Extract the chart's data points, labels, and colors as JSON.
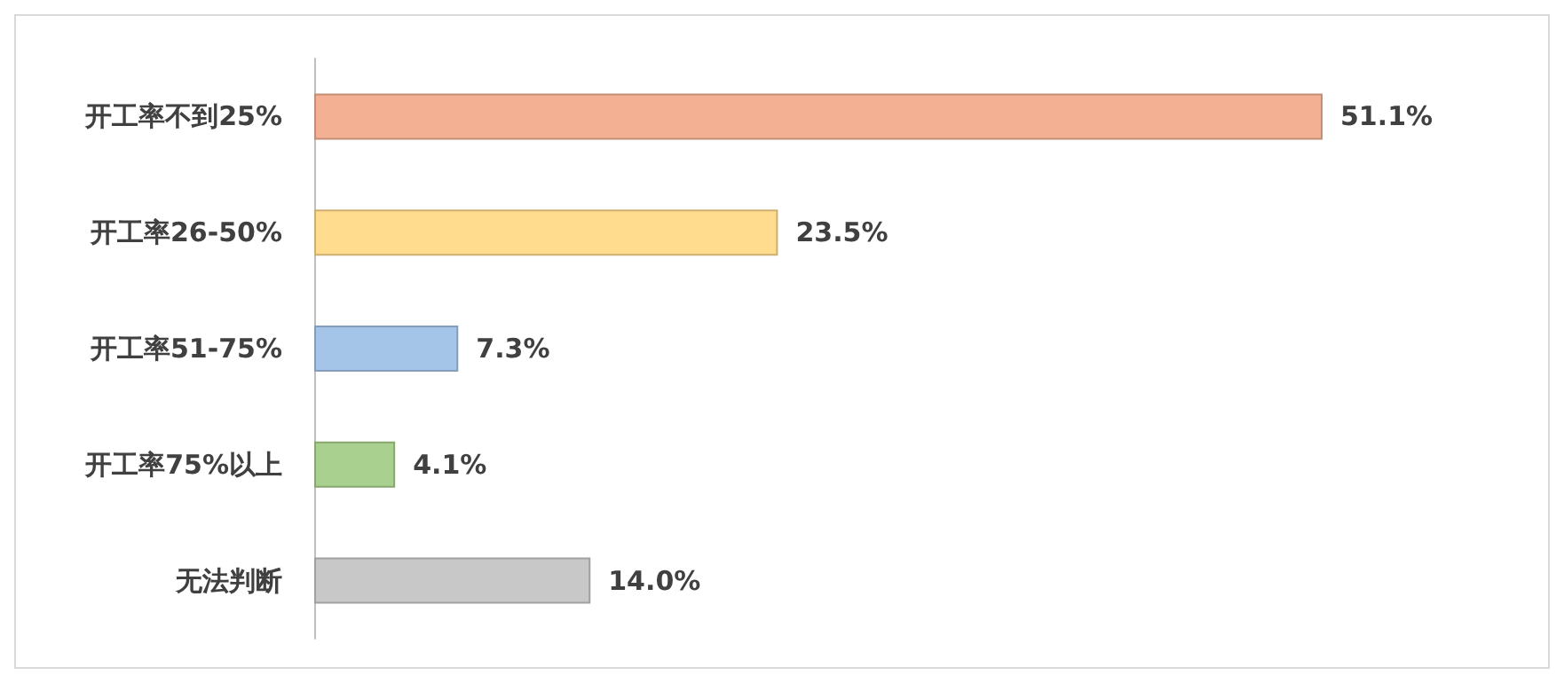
{
  "chart_data": {
    "type": "bar",
    "orientation": "horizontal",
    "categories": [
      "开工率不到25%",
      "开工率26-50%",
      "开工率51-75%",
      "开工率75%以上",
      "无法判断"
    ],
    "values": [
      51.1,
      23.5,
      7.3,
      4.1,
      14.0
    ],
    "colors": [
      "#f4b093",
      "#ffdc8e",
      "#a4c4e8",
      "#a9d08e",
      "#c8c8c8"
    ],
    "value_labels": [
      "51.1%",
      "23.5%",
      "7.3%",
      "4.1%",
      "14.0%"
    ]
  }
}
